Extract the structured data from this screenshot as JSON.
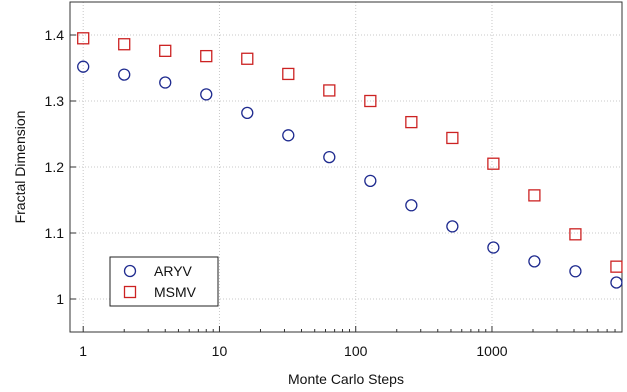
{
  "chart_data": {
    "type": "scatter",
    "title": "",
    "xlabel": "Monte Carlo Steps",
    "ylabel": "Fractal Dimension",
    "xscale": "log",
    "xlim": [
      0.8,
      9000
    ],
    "ylim": [
      0.95,
      1.45
    ],
    "grid": true,
    "legend_position": "bottom-left",
    "x_ticks": [
      {
        "value": 1,
        "label": "1"
      },
      {
        "value": 10,
        "label": "10"
      },
      {
        "value": 100,
        "label": "100"
      },
      {
        "value": 1000,
        "label": "1000"
      }
    ],
    "y_ticks": [
      {
        "value": 1.0,
        "label": "1"
      },
      {
        "value": 1.1,
        "label": "1.1"
      },
      {
        "value": 1.2,
        "label": "1.2"
      },
      {
        "value": 1.3,
        "label": "1.3"
      },
      {
        "value": 1.4,
        "label": "1.4"
      }
    ],
    "series": [
      {
        "name": "ARYV",
        "marker": "circle",
        "color": "#1f2b8f",
        "x": [
          1,
          2,
          4,
          8,
          16,
          32,
          64,
          128,
          256,
          512,
          1024,
          2048,
          4096,
          8192
        ],
        "y": [
          1.352,
          1.34,
          1.328,
          1.31,
          1.282,
          1.248,
          1.215,
          1.179,
          1.142,
          1.11,
          1.078,
          1.057,
          1.042,
          1.025
        ]
      },
      {
        "name": "MSMV",
        "marker": "square",
        "color": "#cc2222",
        "x": [
          1,
          2,
          4,
          8,
          16,
          32,
          64,
          128,
          256,
          512,
          1024,
          2048,
          4096,
          8192
        ],
        "y": [
          1.395,
          1.386,
          1.376,
          1.368,
          1.364,
          1.341,
          1.316,
          1.3,
          1.268,
          1.244,
          1.205,
          1.157,
          1.098,
          1.049
        ]
      }
    ]
  }
}
